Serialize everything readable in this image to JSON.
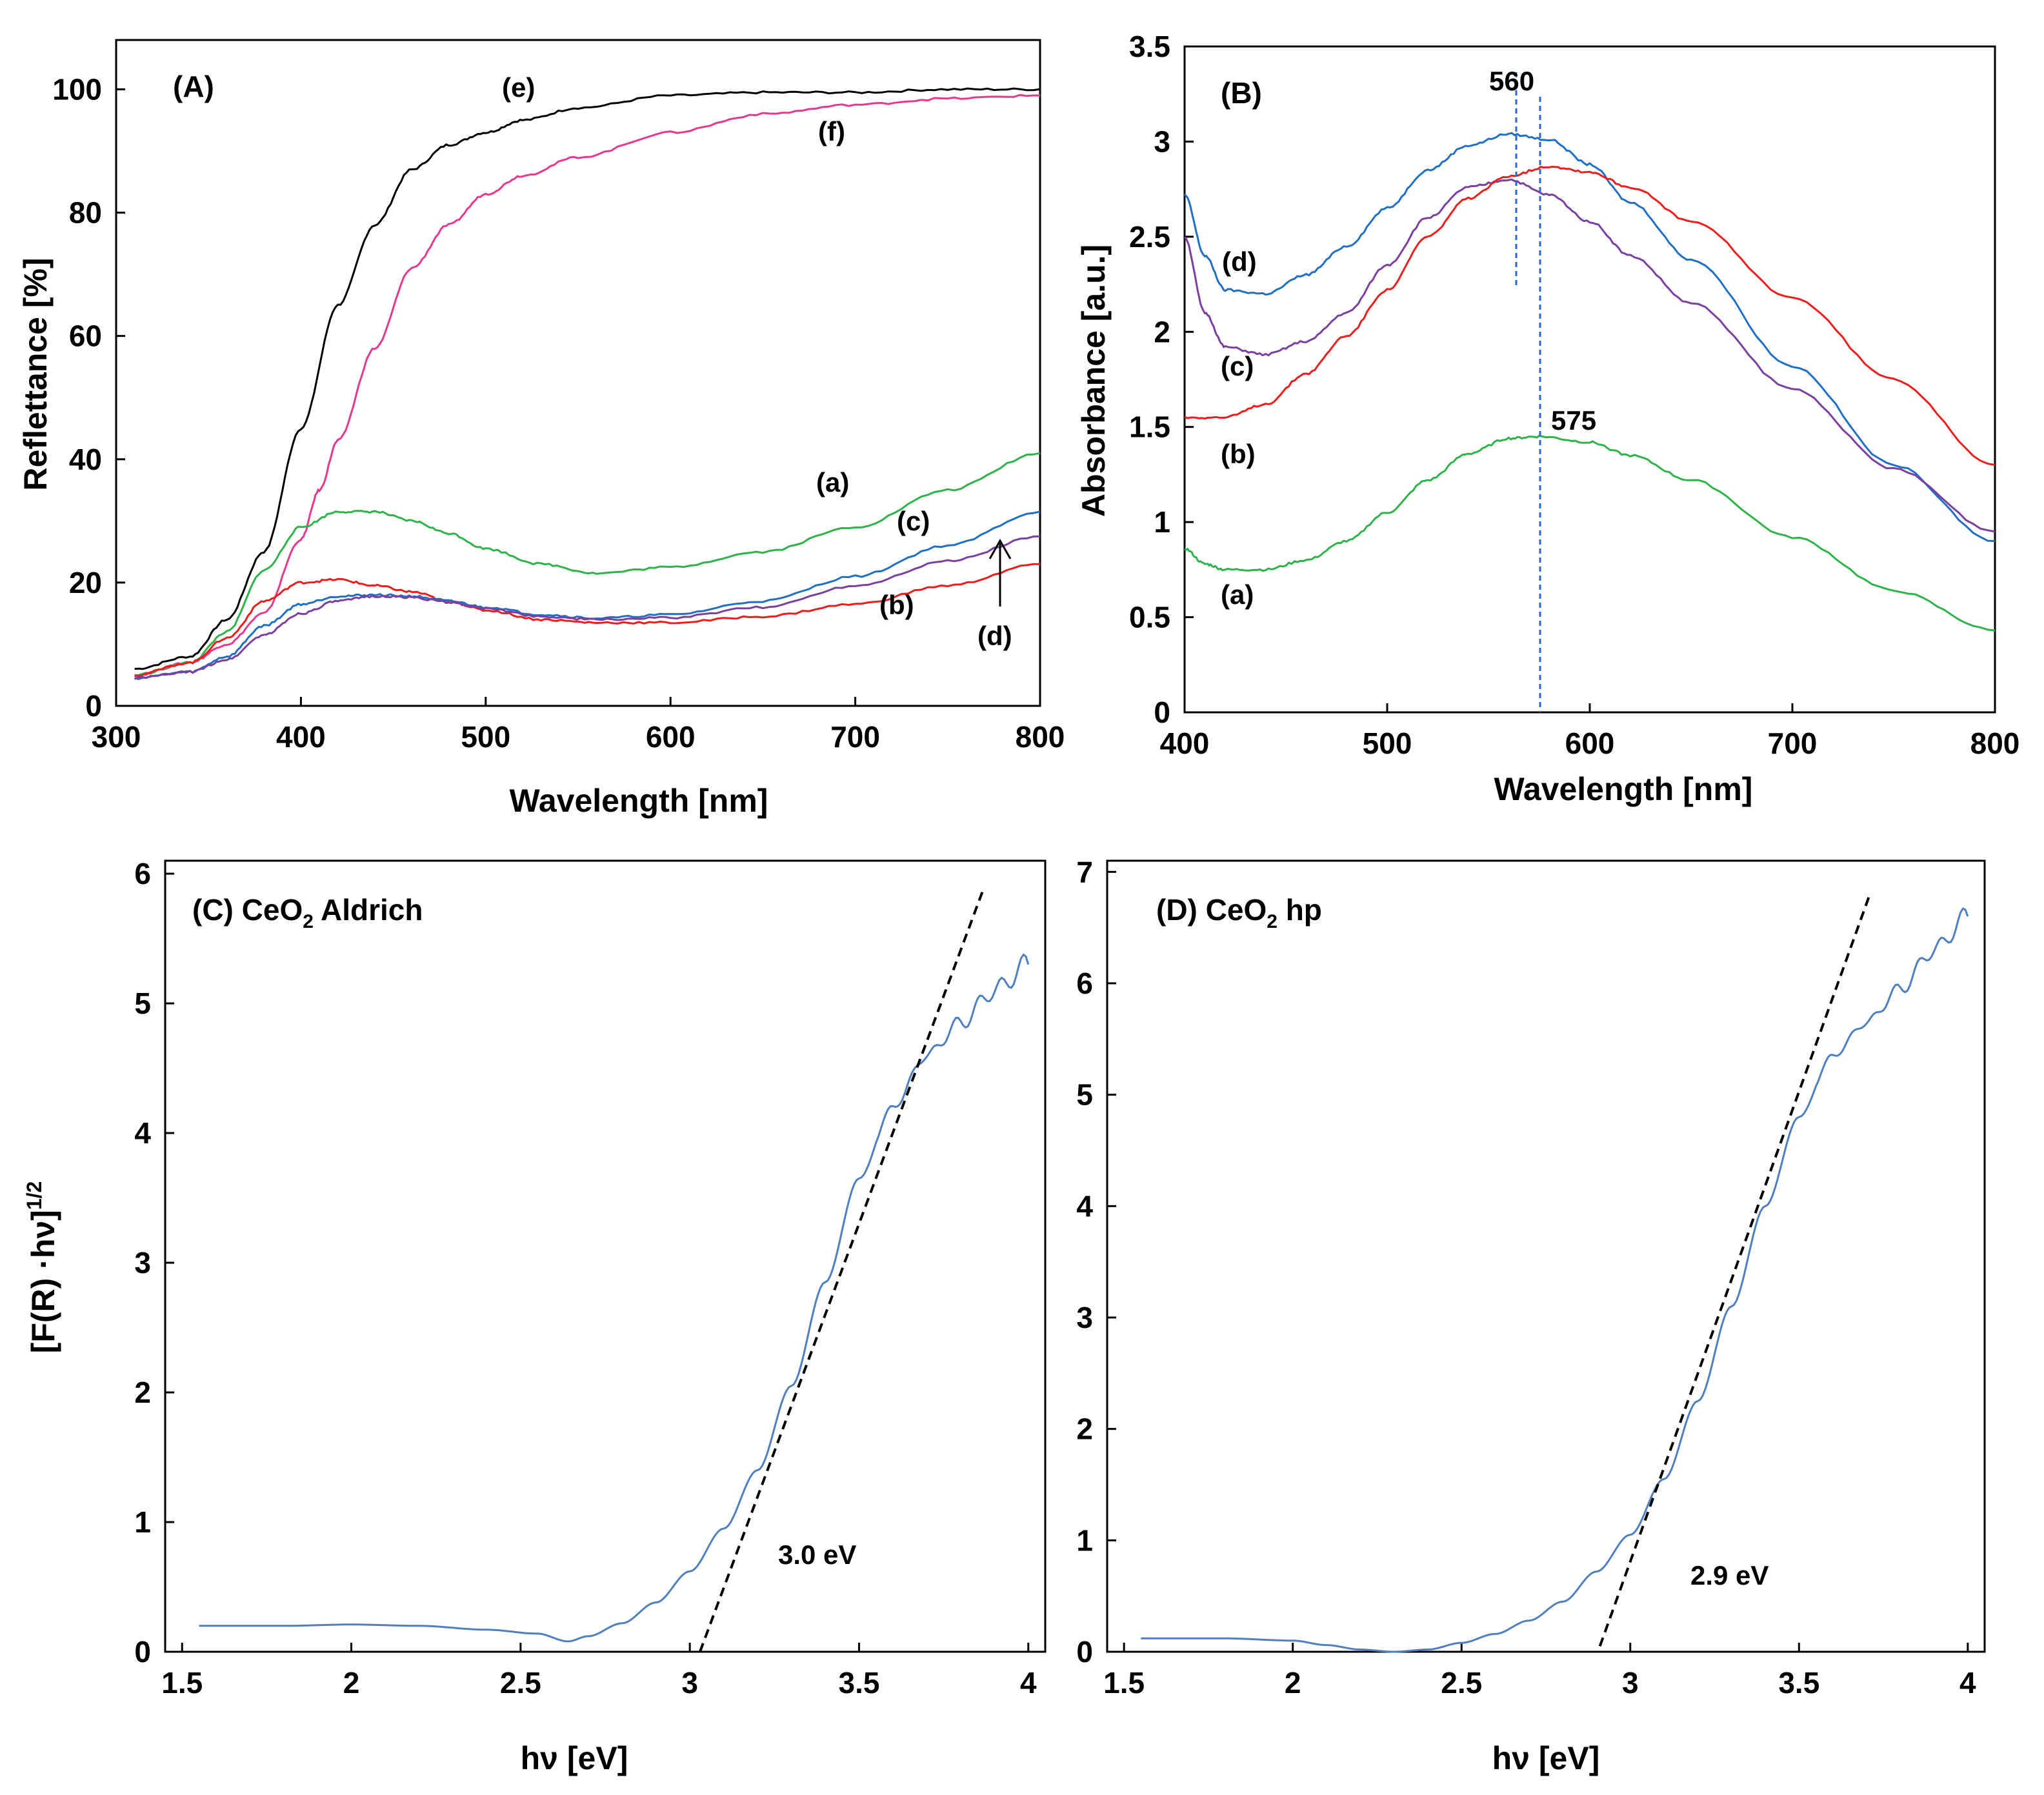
{
  "chart_data": [
    {
      "type": "line",
      "panel": "(A)",
      "xlabel": "Wavelength [nm]",
      "ylabel": "Reflettance [%]",
      "xlim": [
        300,
        800
      ],
      "ylim": [
        0,
        108
      ],
      "xticks": [
        300,
        400,
        500,
        600,
        700,
        800
      ],
      "yticks": [
        0,
        20,
        40,
        60,
        80,
        100
      ],
      "grid": false,
      "series": [
        {
          "name": "(e)",
          "color": "#000000",
          "x": [
            310,
            340,
            360,
            380,
            400,
            420,
            440,
            460,
            480,
            500,
            520,
            550,
            600,
            650,
            700,
            750,
            800
          ],
          "y": [
            6,
            8,
            14,
            25,
            45,
            65,
            78,
            87,
            91,
            93,
            95,
            97,
            99,
            99.5,
            99.5,
            100,
            100
          ]
        },
        {
          "name": "(f)",
          "color": "#e8388e",
          "x": [
            310,
            340,
            360,
            380,
            400,
            410,
            420,
            440,
            460,
            480,
            500,
            520,
            550,
            600,
            650,
            700,
            750,
            800
          ],
          "y": [
            5,
            7,
            10,
            15,
            27,
            35,
            43,
            58,
            71,
            78,
            83,
            86,
            89,
            93,
            96,
            97.5,
            98.5,
            99
          ]
        },
        {
          "name": "(a)",
          "color": "#2db34a",
          "x": [
            310,
            340,
            360,
            380,
            400,
            420,
            440,
            460,
            480,
            500,
            530,
            560,
            600,
            650,
            700,
            750,
            800
          ],
          "y": [
            5,
            7,
            12,
            22,
            29,
            31.5,
            31.5,
            30,
            28,
            25.5,
            23,
            21.5,
            22.5,
            25,
            29,
            35,
            41
          ]
        },
        {
          "name": "(b)",
          "color": "#ee1c1c",
          "x": [
            310,
            340,
            360,
            380,
            400,
            420,
            440,
            460,
            480,
            500,
            530,
            560,
            600,
            650,
            700,
            750,
            800
          ],
          "y": [
            5,
            7,
            11,
            17,
            20,
            20.5,
            19.5,
            18.5,
            17,
            15.5,
            14,
            13.5,
            13.5,
            14.5,
            16.5,
            19.5,
            23
          ]
        },
        {
          "name": "(c)",
          "color": "#1f6fc4",
          "x": [
            310,
            340,
            360,
            380,
            400,
            420,
            440,
            460,
            480,
            500,
            530,
            560,
            600,
            650,
            700,
            750,
            800
          ],
          "y": [
            4.5,
            5.5,
            8,
            13,
            16.5,
            17.8,
            18,
            17.8,
            17,
            16,
            14.8,
            14.2,
            14.8,
            17,
            21,
            26,
            31.5
          ]
        },
        {
          "name": "(d)",
          "color": "#7b3fa0",
          "x": [
            310,
            340,
            360,
            380,
            400,
            420,
            440,
            460,
            480,
            500,
            530,
            560,
            600,
            650,
            700,
            750,
            800
          ],
          "y": [
            4.5,
            5.5,
            7.5,
            11.5,
            15,
            17,
            17.8,
            17.6,
            16.8,
            15.8,
            14.5,
            14,
            14.3,
            16,
            19.5,
            23.5,
            27.5
          ]
        }
      ],
      "annotations": [
        "(e)",
        "(f)",
        "(a)",
        "(c)",
        "(b)",
        "(d)"
      ]
    },
    {
      "type": "line",
      "panel": "(B)",
      "xlabel": "Wavelength [nm]",
      "ylabel": "Absorbance [a.u.]",
      "xlim": [
        400,
        800
      ],
      "ylim": [
        0,
        3.5
      ],
      "xticks": [
        400,
        500,
        600,
        700,
        800
      ],
      "yticks": [
        0,
        0.5,
        1,
        1.5,
        2,
        2.5,
        3,
        3.5
      ],
      "grid": false,
      "series": [
        {
          "name": "(d)",
          "color": "#1f6fc4",
          "x": [
            400,
            410,
            420,
            440,
            460,
            480,
            500,
            520,
            540,
            560,
            580,
            600,
            620,
            650,
            700,
            750,
            800
          ],
          "y": [
            2.72,
            2.4,
            2.22,
            2.2,
            2.3,
            2.45,
            2.65,
            2.85,
            2.98,
            3.04,
            3.01,
            2.88,
            2.68,
            2.38,
            1.82,
            1.3,
            0.9
          ]
        },
        {
          "name": "(c)",
          "color": "#7b3fa0",
          "x": [
            400,
            410,
            420,
            440,
            460,
            480,
            500,
            520,
            540,
            560,
            580,
            600,
            620,
            650,
            700,
            750,
            800
          ],
          "y": [
            2.5,
            2.1,
            1.92,
            1.88,
            1.95,
            2.1,
            2.35,
            2.6,
            2.76,
            2.8,
            2.72,
            2.58,
            2.4,
            2.15,
            1.7,
            1.28,
            0.95
          ]
        },
        {
          "name": "(b)",
          "color": "#ee1c1c",
          "x": [
            400,
            420,
            440,
            460,
            480,
            500,
            520,
            540,
            560,
            580,
            600,
            620,
            650,
            700,
            750,
            800
          ],
          "y": [
            1.55,
            1.55,
            1.62,
            1.78,
            1.98,
            2.22,
            2.5,
            2.7,
            2.82,
            2.87,
            2.84,
            2.76,
            2.58,
            2.18,
            1.75,
            1.3
          ]
        },
        {
          "name": "(a)",
          "color": "#2db34a",
          "x": [
            400,
            410,
            420,
            440,
            460,
            480,
            500,
            520,
            540,
            560,
            575,
            600,
            620,
            650,
            700,
            750,
            800
          ],
          "y": [
            0.86,
            0.78,
            0.75,
            0.75,
            0.8,
            0.9,
            1.05,
            1.22,
            1.36,
            1.44,
            1.45,
            1.42,
            1.35,
            1.22,
            0.92,
            0.64,
            0.43
          ]
        }
      ],
      "annotations": [
        "(B)",
        "560",
        "575",
        "(d)",
        "(c)",
        "(b)",
        "(a)"
      ],
      "markers": [
        560,
        575
      ]
    },
    {
      "type": "line",
      "panel": "(C) CeO2 Aldrich",
      "panel_main": "(C) CeO",
      "panel_sub": "2",
      "panel_rest": " Aldrich",
      "xlabel": "hν [eV]",
      "ylabel_main": "[F(R) ·hν]",
      "ylabel_sup": "1/2",
      "xlim": [
        1.45,
        4.05
      ],
      "ylim": [
        0,
        6.1
      ],
      "xticks": [
        "1.5",
        "2",
        "2.5",
        "3",
        "3.5",
        "4"
      ],
      "yticks": [
        "0",
        "1",
        "2",
        "3",
        "4",
        "5",
        "6"
      ],
      "grid": false,
      "series": [
        {
          "name": "",
          "color": "#4f7fc0",
          "x": [
            1.55,
            1.8,
            2.0,
            2.2,
            2.4,
            2.55,
            2.64,
            2.7,
            2.8,
            2.9,
            3.0,
            3.1,
            3.2,
            3.3,
            3.4,
            3.5,
            3.6,
            3.7,
            3.8,
            3.9,
            4.0
          ],
          "y": [
            0.2,
            0.2,
            0.21,
            0.2,
            0.17,
            0.14,
            0.08,
            0.12,
            0.22,
            0.38,
            0.62,
            0.95,
            1.4,
            2.05,
            2.85,
            3.65,
            4.2,
            4.6,
            4.85,
            5.1,
            5.3
          ]
        },
        {
          "name": "",
          "color": "#000000",
          "dashed": true,
          "x": [
            3.03,
            3.87
          ],
          "y": [
            0.0,
            5.9
          ]
        }
      ],
      "annotations": [
        "3.0 eV"
      ]
    },
    {
      "type": "line",
      "panel": "(D) CeO2 hp",
      "panel_main": "(D) CeO",
      "panel_sub": "2",
      "panel_rest": " hp",
      "xlabel": "hν [eV]",
      "xlim": [
        1.45,
        4.05
      ],
      "ylim": [
        0,
        7.1
      ],
      "xticks": [
        "1.5",
        "2",
        "2.5",
        "3",
        "3.5",
        "4"
      ],
      "yticks": [
        "0",
        "1",
        "2",
        "3",
        "4",
        "5",
        "6",
        "7"
      ],
      "grid": false,
      "series": [
        {
          "name": "",
          "color": "#4f7fc0",
          "x": [
            1.55,
            1.8,
            2.0,
            2.1,
            2.2,
            2.3,
            2.4,
            2.5,
            2.6,
            2.7,
            2.8,
            2.9,
            3.0,
            3.1,
            3.2,
            3.3,
            3.4,
            3.5,
            3.6,
            3.7,
            3.8,
            3.9,
            4.0
          ],
          "y": [
            0.12,
            0.12,
            0.1,
            0.06,
            0.02,
            0.0,
            0.02,
            0.08,
            0.16,
            0.28,
            0.45,
            0.72,
            1.05,
            1.55,
            2.25,
            3.1,
            4.0,
            4.8,
            5.35,
            5.65,
            5.95,
            6.3,
            6.6
          ]
        },
        {
          "name": "",
          "color": "#000000",
          "dashed": true,
          "x": [
            2.91,
            3.71
          ],
          "y": [
            0.05,
            6.8
          ]
        }
      ],
      "annotations": [
        "2.9 eV"
      ]
    }
  ]
}
